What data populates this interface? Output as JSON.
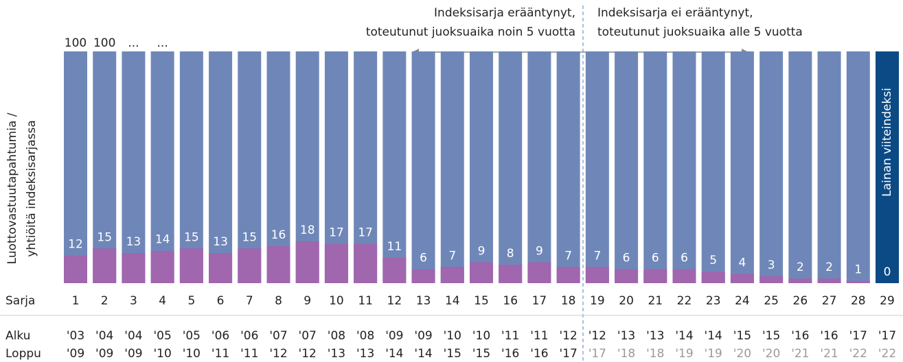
{
  "chart_data": {
    "type": "bar",
    "annotation_left": [
      "Indeksisarja erääntynyt,",
      "toteutunut juoksuaika noin 5 vuotta"
    ],
    "annotation_right": [
      "Indeksisarja ei erääntynyt,",
      "toteutunut juoksuaika alle 5 vuotta"
    ],
    "y_label": [
      "Luottovastuutapahtumia /",
      "yhtiöitä indeksisarjassa"
    ],
    "ellipsis_labels": [
      "...",
      "..."
    ],
    "last_bar_label": "Lainan viiteindeksi",
    "row_labels": [
      "Sarja",
      "Alku",
      "Loppu"
    ],
    "categories": [
      "1",
      "2",
      "3",
      "4",
      "5",
      "6",
      "7",
      "8",
      "9",
      "10",
      "11",
      "12",
      "13",
      "14",
      "15",
      "16",
      "17",
      "18",
      "19",
      "20",
      "21",
      "22",
      "23",
      "24",
      "25",
      "26",
      "27",
      "28",
      "29"
    ],
    "alku": [
      "'03",
      "'04",
      "'04",
      "'05",
      "'05",
      "'06",
      "'06",
      "'07",
      "'07",
      "'08",
      "'08",
      "'09",
      "'09",
      "'10",
      "'10",
      "'11",
      "'11",
      "'12",
      "'12",
      "'13",
      "'13",
      "'14",
      "'14",
      "'15",
      "'15",
      "'16",
      "'16",
      "'17",
      "'17"
    ],
    "loppu": [
      "'09",
      "'09",
      "'09",
      "'10",
      "'10",
      "'11",
      "'11",
      "'12",
      "'12",
      "'13",
      "'13",
      "'14",
      "'14",
      "'15",
      "'15",
      "'16",
      "'16",
      "'17",
      "'17",
      "'18",
      "'18",
      "'19",
      "'19",
      "'20",
      "'20",
      "'21",
      "'21",
      "'22",
      "'22"
    ],
    "loppu_colors": [
      "#222",
      "#222",
      "#222",
      "#222",
      "#222",
      "#222",
      "#222",
      "#222",
      "#222",
      "#222",
      "#222",
      "#222",
      "#222",
      "#222",
      "#222",
      "#222",
      "#222",
      "#222",
      "#999",
      "#999",
      "#999",
      "#999",
      "#999",
      "#999",
      "#999",
      "#999",
      "#999",
      "#999",
      "#999"
    ],
    "ylim": [
      0,
      100
    ],
    "series": [
      {
        "name": "Yhtiöitä",
        "values": [
          100,
          100,
          100,
          100,
          100,
          100,
          100,
          100,
          100,
          100,
          100,
          100,
          100,
          100,
          100,
          100,
          100,
          100,
          100,
          100,
          100,
          100,
          100,
          100,
          100,
          100,
          100,
          100,
          100
        ],
        "value_labels": [
          "100",
          "100",
          null,
          null,
          null,
          null,
          null,
          null,
          null,
          null,
          null,
          null,
          null,
          null,
          null,
          null,
          null,
          null,
          null,
          null,
          null,
          null,
          null,
          null,
          null,
          null,
          null,
          null,
          null
        ],
        "colors": [
          "#6f87b8",
          "#6f87b8",
          "#6f87b8",
          "#6f87b8",
          "#6f87b8",
          "#6f87b8",
          "#6f87b8",
          "#6f87b8",
          "#6f87b8",
          "#6f87b8",
          "#6f87b8",
          "#6f87b8",
          "#6f87b8",
          "#6f87b8",
          "#6f87b8",
          "#6f87b8",
          "#6f87b8",
          "#6f87b8",
          "#6f87b8",
          "#6f87b8",
          "#6f87b8",
          "#6f87b8",
          "#6f87b8",
          "#6f87b8",
          "#6f87b8",
          "#6f87b8",
          "#6f87b8",
          "#6f87b8",
          "#0b4a85"
        ]
      },
      {
        "name": "Luottovastuutapahtumia",
        "color": "#a066ae",
        "values": [
          12,
          15,
          13,
          14,
          15,
          13,
          15,
          16,
          18,
          17,
          17,
          11,
          6,
          7,
          9,
          8,
          9,
          7,
          7,
          6,
          6,
          6,
          5,
          4,
          3,
          2,
          2,
          1,
          0
        ]
      }
    ]
  }
}
